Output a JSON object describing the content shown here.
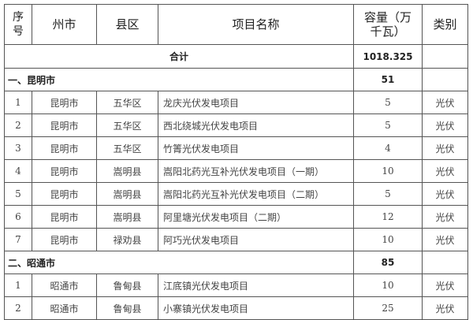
{
  "headers": {
    "seq": "序号",
    "city": "州市",
    "county": "县区",
    "name": "项目名称",
    "capacity": "容量（万千瓦）",
    "type": "类别"
  },
  "total": {
    "label": "合计",
    "capacity": "1018.325"
  },
  "groups": [
    {
      "label": "一、昆明市",
      "capacity": "51",
      "rows": [
        {
          "seq": "1",
          "city": "昆明市",
          "county": "五华区",
          "name": "龙庆光伏发电项目",
          "capacity": "5",
          "type": "光伏"
        },
        {
          "seq": "2",
          "city": "昆明市",
          "county": "五华区",
          "name": "西北绕城光伏发电项目",
          "capacity": "5",
          "type": "光伏"
        },
        {
          "seq": "3",
          "city": "昆明市",
          "county": "五华区",
          "name": "竹箐光伏发电项目",
          "capacity": "4",
          "type": "光伏"
        },
        {
          "seq": "4",
          "city": "昆明市",
          "county": "嵩明县",
          "name": "嵩阳北药光互补光伏发电项目（一期）",
          "capacity": "10",
          "type": "光伏"
        },
        {
          "seq": "5",
          "city": "昆明市",
          "county": "嵩明县",
          "name": "嵩阳北药光互补光伏发电项目（二期）",
          "capacity": "5",
          "type": "光伏"
        },
        {
          "seq": "6",
          "city": "昆明市",
          "county": "嵩明县",
          "name": "阿里塘光伏发电项目（二期）",
          "capacity": "12",
          "type": "光伏"
        },
        {
          "seq": "7",
          "city": "昆明市",
          "county": "禄劝县",
          "name": "阿巧光伏发电项目",
          "capacity": "10",
          "type": "光伏"
        }
      ]
    },
    {
      "label": "二、昭通市",
      "capacity": "85",
      "rows": [
        {
          "seq": "1",
          "city": "昭通市",
          "county": "鲁甸县",
          "name": "江底镇光伏发电项目",
          "capacity": "10",
          "type": "光伏"
        },
        {
          "seq": "2",
          "city": "昭通市",
          "county": "鲁甸县",
          "name": "小寨镇光伏发电项目",
          "capacity": "25",
          "type": "光伏"
        }
      ]
    }
  ]
}
